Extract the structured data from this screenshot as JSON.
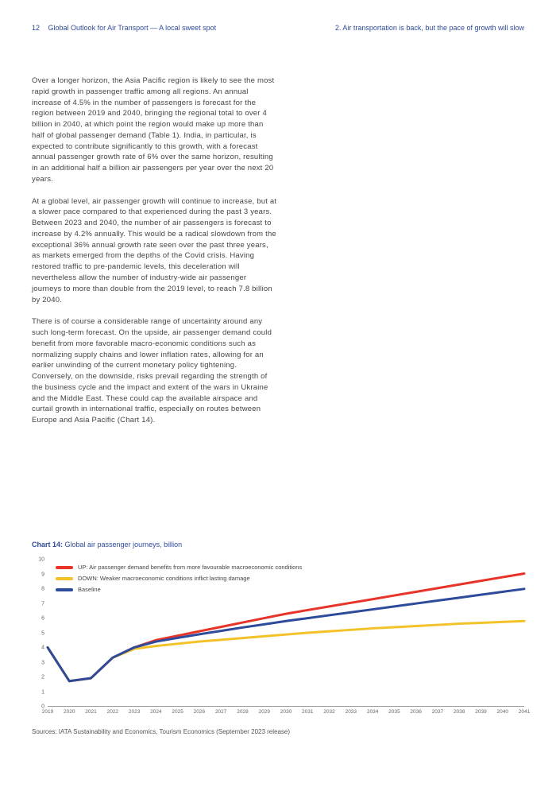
{
  "header": {
    "page_number": "12",
    "doc_title": "Global Outlook for Air Transport — A local sweet spot",
    "section": "2.  Air transportation is back, but the pace of growth will slow"
  },
  "paragraphs": [
    "Over a longer horizon, the Asia Pacific region is likely to see the most rapid growth in passenger traffic among all regions. An annual increase of 4.5% in the number of passengers is forecast for the region between 2019 and 2040, bringing the regional total to over 4 billion in 2040, at which point the region would make up more than half of global passenger demand (Table 1). India, in particular, is expected to contribute significantly to this growth, with a forecast annual passenger growth rate of 6% over the same horizon, resulting in an additional half a billion air passengers per year over the next 20 years.",
    "At a global level, air passenger growth will continue to increase, but at a slower pace compared to that experienced during the past 3 years. Between 2023 and 2040, the number of air passengers is forecast to increase by 4.2% annually. This would be a radical slowdown from the exceptional 36% annual growth rate seen over the past three years, as markets emerged from the depths of the Covid crisis. Having restored traffic to pre-pandemic levels, this deceleration will nevertheless allow the number of industry-wide air passenger journeys to more than double from the 2019 level, to reach 7.8 billion by 2040.",
    "There is of course a considerable range of uncertainty around any such long-term forecast. On the upside, air passenger demand could benefit from more favorable macro-economic conditions such as normalizing supply chains and lower inflation rates, allowing for an earlier unwinding of the current monetary policy tightening. Conversely, on the downside, risks prevail regarding the strength of the business cycle and the impact and extent of the wars in Ukraine and the Middle East. These could cap the available airspace and curtail growth in international traffic, especially on routes between Europe and Asia Pacific (Chart 14)."
  ],
  "chart": {
    "title_strong": "Chart 14:",
    "title_rest": " Global air passenger journeys, billion",
    "type": "line",
    "legend": [
      {
        "label": "UP: Air passenger demand benefits from more favourable macroeconomic conditions",
        "color": "#e83428"
      },
      {
        "label": "DOWN: Weaker macroeconomic conditions inflict lasting damage",
        "color": "#f3c229"
      },
      {
        "label": "Baseline",
        "color": "#2e4b9b"
      }
    ],
    "x_years": [
      "2019",
      "2020",
      "2021",
      "2022",
      "2023",
      "2024",
      "2025",
      "2026",
      "2027",
      "2028",
      "2029",
      "2030",
      "2031",
      "2032",
      "2033",
      "2034",
      "2035",
      "2036",
      "2037",
      "2038",
      "2039",
      "2040",
      "2041"
    ],
    "y_ticks": [
      0,
      1,
      2,
      3,
      4,
      5,
      6,
      7,
      8,
      9,
      10
    ],
    "ylim": [
      0,
      10
    ],
    "line_width": 3,
    "plot_bg": "#ffffff",
    "series": {
      "up": [
        4.0,
        1.7,
        1.9,
        3.3,
        4.0,
        4.5,
        4.8,
        5.1,
        5.4,
        5.7,
        6.0,
        6.3,
        6.55,
        6.8,
        7.05,
        7.3,
        7.55,
        7.8,
        8.05,
        8.3,
        8.55,
        8.8,
        9.05
      ],
      "down": [
        4.0,
        1.7,
        1.9,
        3.3,
        3.9,
        4.1,
        4.25,
        4.4,
        4.52,
        4.64,
        4.76,
        4.88,
        5.0,
        5.1,
        5.2,
        5.3,
        5.38,
        5.46,
        5.54,
        5.62,
        5.68,
        5.74,
        5.8
      ],
      "baseline": [
        4.0,
        1.7,
        1.9,
        3.3,
        4.0,
        4.4,
        4.65,
        4.9,
        5.13,
        5.36,
        5.58,
        5.8,
        6.0,
        6.2,
        6.4,
        6.6,
        6.8,
        7.0,
        7.2,
        7.4,
        7.6,
        7.8,
        8.0
      ]
    },
    "source": "Sources: IATA Sustainability and Economics, Tourism Economics (September 2023 release)"
  }
}
